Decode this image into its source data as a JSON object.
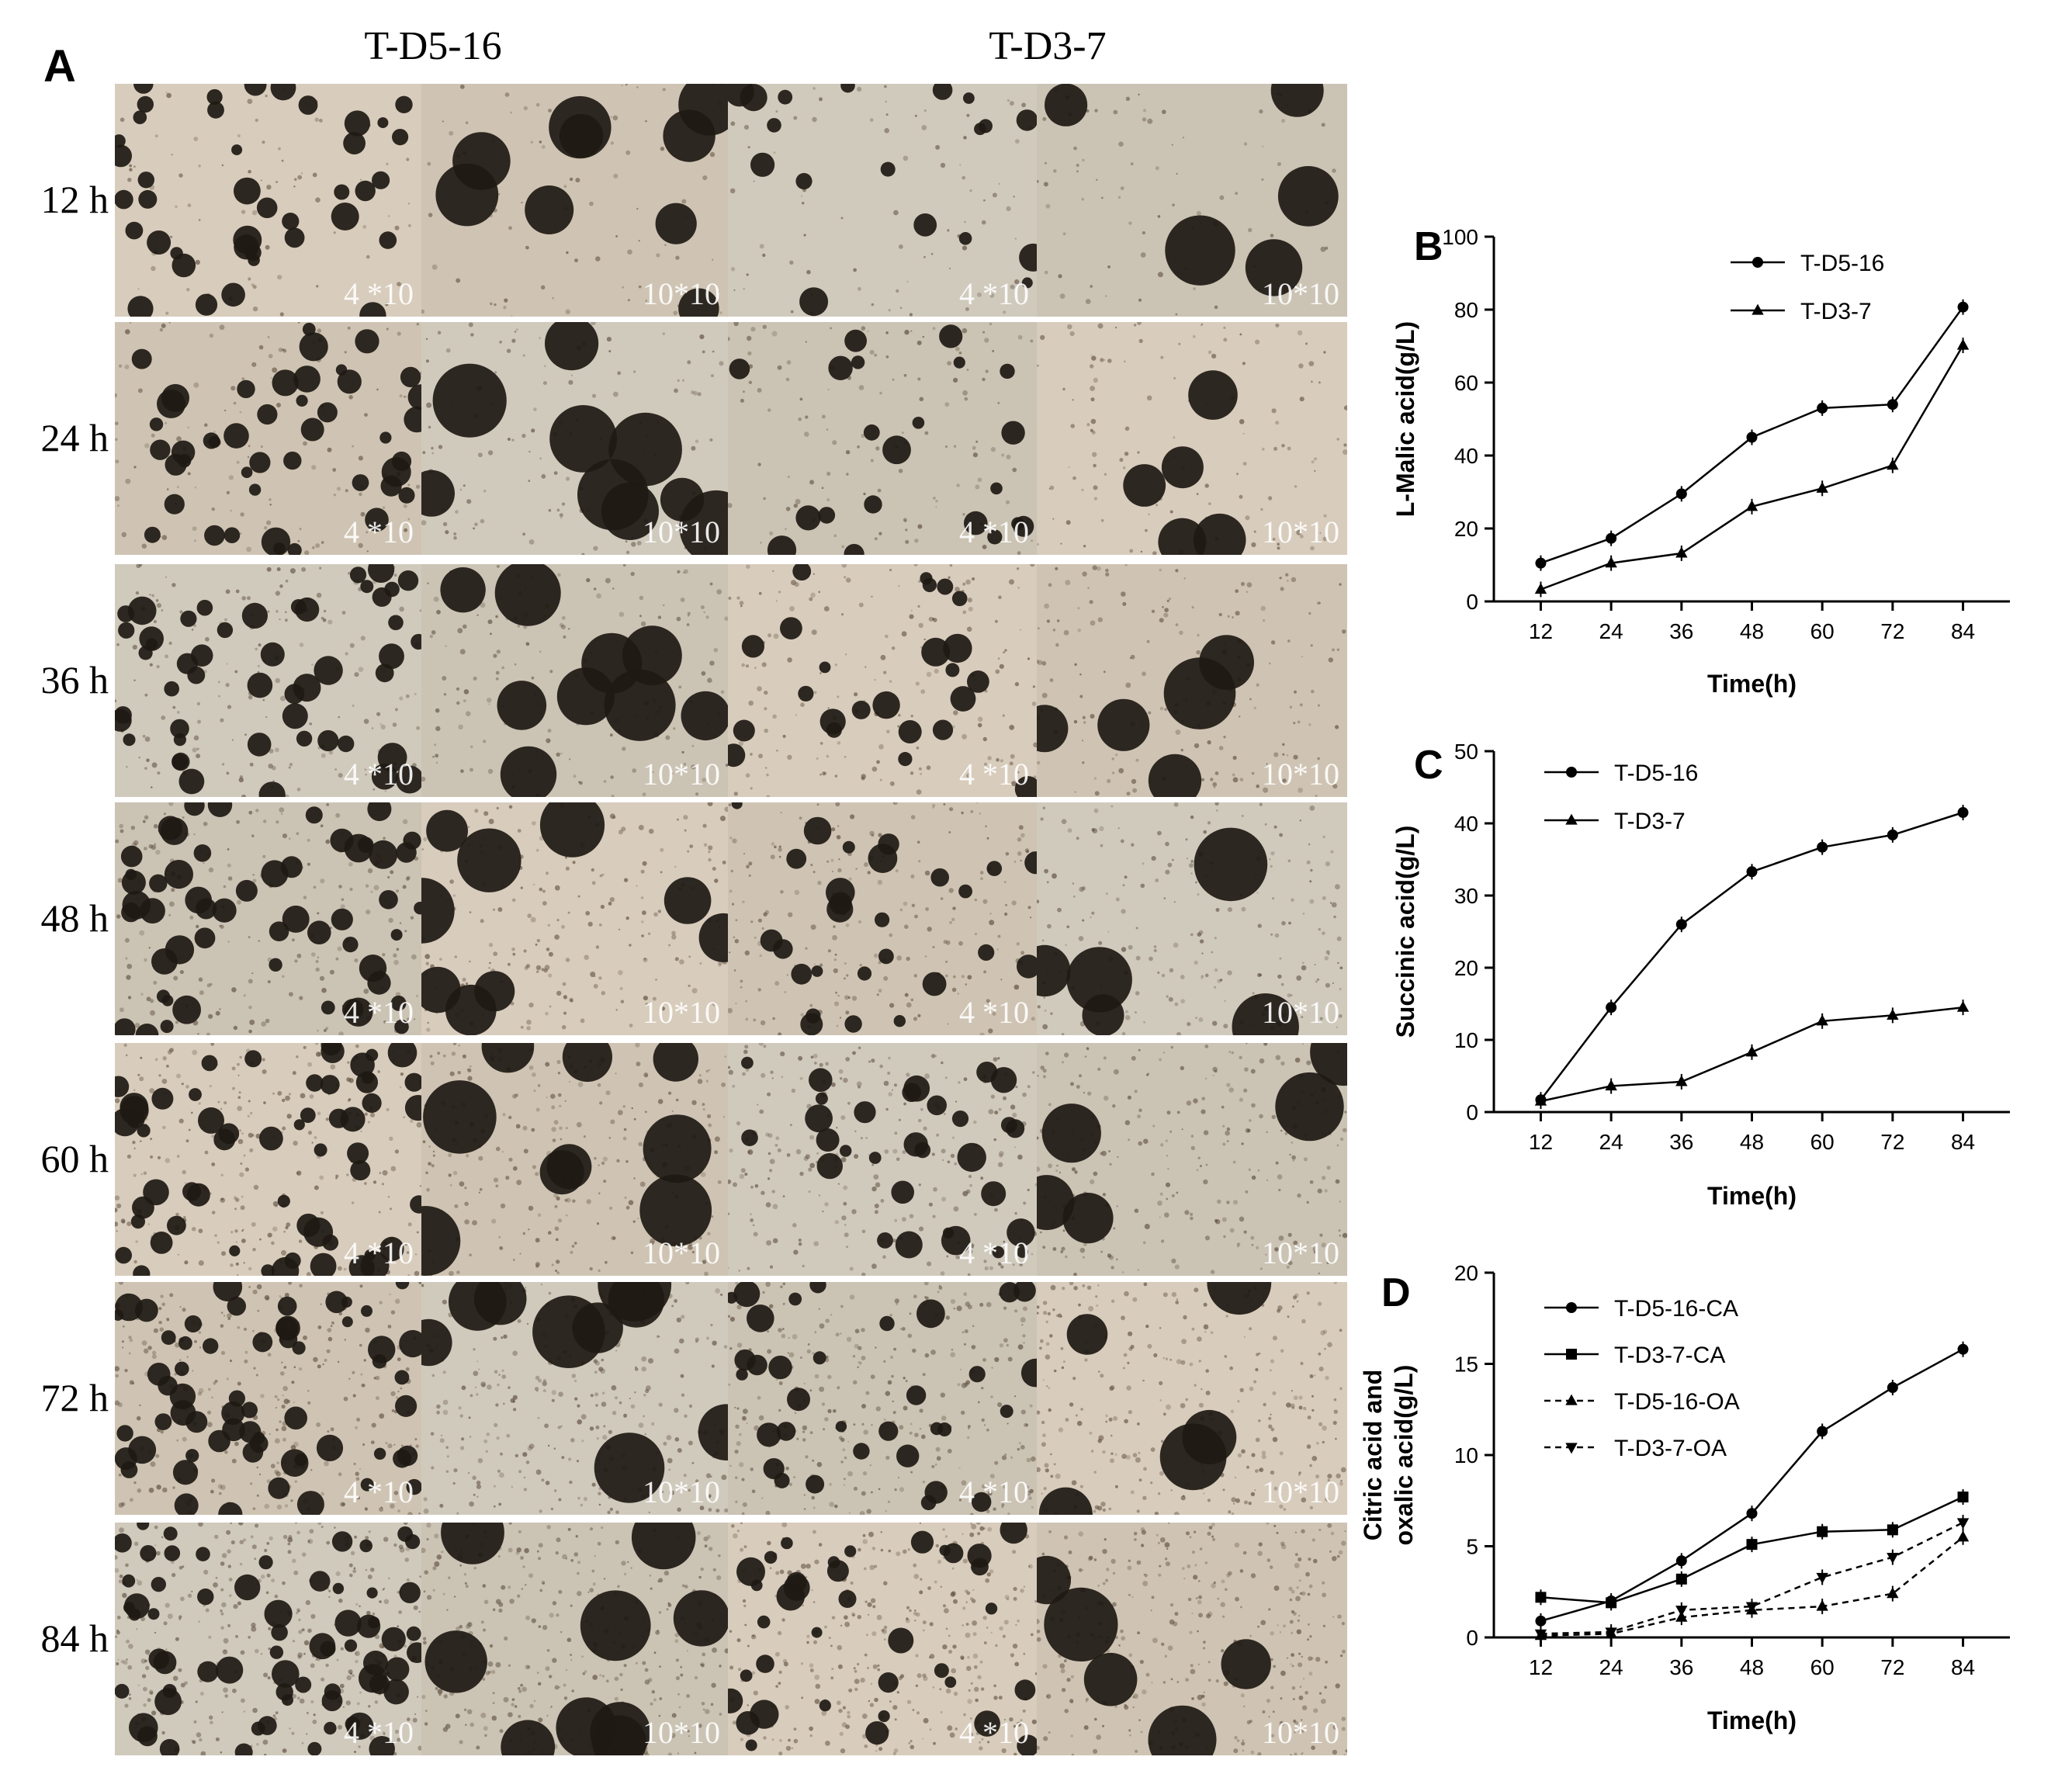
{
  "panel_a": {
    "letter": "A",
    "strains": [
      "T-D5-16",
      "T-D3-7"
    ],
    "times": [
      "12 h",
      "24 h",
      "36 h",
      "48 h",
      "60 h",
      "72 h",
      "84 h"
    ],
    "magnifications": [
      "4 *10",
      "10*10",
      "4 *10",
      "10*10"
    ]
  },
  "chart_data": [
    {
      "type": "line",
      "panel": "B",
      "xlabel": "Time(h)",
      "ylabel": "L-Malic acid(g/L)",
      "x": [
        12,
        24,
        36,
        48,
        60,
        72,
        84
      ],
      "xlim": [
        4,
        92
      ],
      "ylim": [
        0,
        100
      ],
      "yticks": [
        0,
        20,
        40,
        60,
        80,
        100
      ],
      "legend_position": "top-center",
      "grid": false,
      "series": [
        {
          "name": "T-D5-16",
          "marker": "circle",
          "dashed": false,
          "values": [
            10.5,
            17.3,
            29.5,
            45.0,
            53.0,
            54.0,
            80.7
          ]
        },
        {
          "name": "T-D3-7",
          "marker": "triangle-up",
          "dashed": false,
          "values": [
            3.3,
            10.5,
            13.2,
            26.0,
            31.0,
            37.3,
            70.2
          ]
        }
      ]
    },
    {
      "type": "line",
      "panel": "C",
      "xlabel": "Time(h)",
      "ylabel": "Succinic acid(g/L)",
      "x": [
        12,
        24,
        36,
        48,
        60,
        72,
        84
      ],
      "xlim": [
        4,
        92
      ],
      "ylim": [
        0,
        50
      ],
      "yticks": [
        0,
        10,
        20,
        30,
        40,
        50
      ],
      "legend_position": "top-left",
      "grid": false,
      "series": [
        {
          "name": "T-D5-16",
          "marker": "circle",
          "dashed": false,
          "values": [
            1.7,
            14.5,
            26.0,
            33.3,
            36.7,
            38.4,
            41.5
          ]
        },
        {
          "name": "T-D3-7",
          "marker": "triangle-up",
          "dashed": false,
          "values": [
            1.5,
            3.6,
            4.2,
            8.3,
            12.6,
            13.4,
            14.5
          ]
        }
      ]
    },
    {
      "type": "line",
      "panel": "D",
      "xlabel": "Time(h)",
      "ylabel": [
        "Citric acid and",
        "oxalic acid(g/L)"
      ],
      "x": [
        12,
        24,
        36,
        48,
        60,
        72,
        84
      ],
      "xlim": [
        4,
        92
      ],
      "ylim": [
        0,
        20
      ],
      "yticks": [
        0,
        5,
        10,
        15,
        20
      ],
      "legend_position": "top-left",
      "grid": false,
      "series": [
        {
          "name": "T-D5-16-CA",
          "marker": "circle",
          "dashed": false,
          "values": [
            0.9,
            2.0,
            4.2,
            6.8,
            11.3,
            13.7,
            15.8
          ]
        },
        {
          "name": "T-D3-7-CA",
          "marker": "square",
          "dashed": false,
          "values": [
            2.2,
            1.9,
            3.2,
            5.1,
            5.8,
            5.9,
            7.7
          ]
        },
        {
          "name": "T-D5-16-OA",
          "marker": "triangle-up",
          "dashed": true,
          "values": [
            0.1,
            0.2,
            1.1,
            1.5,
            1.7,
            2.4,
            5.5
          ]
        },
        {
          "name": "T-D3-7-OA",
          "marker": "triangle-down",
          "dashed": true,
          "values": [
            0.2,
            0.3,
            1.5,
            1.7,
            3.3,
            4.4,
            6.3
          ]
        }
      ]
    }
  ]
}
